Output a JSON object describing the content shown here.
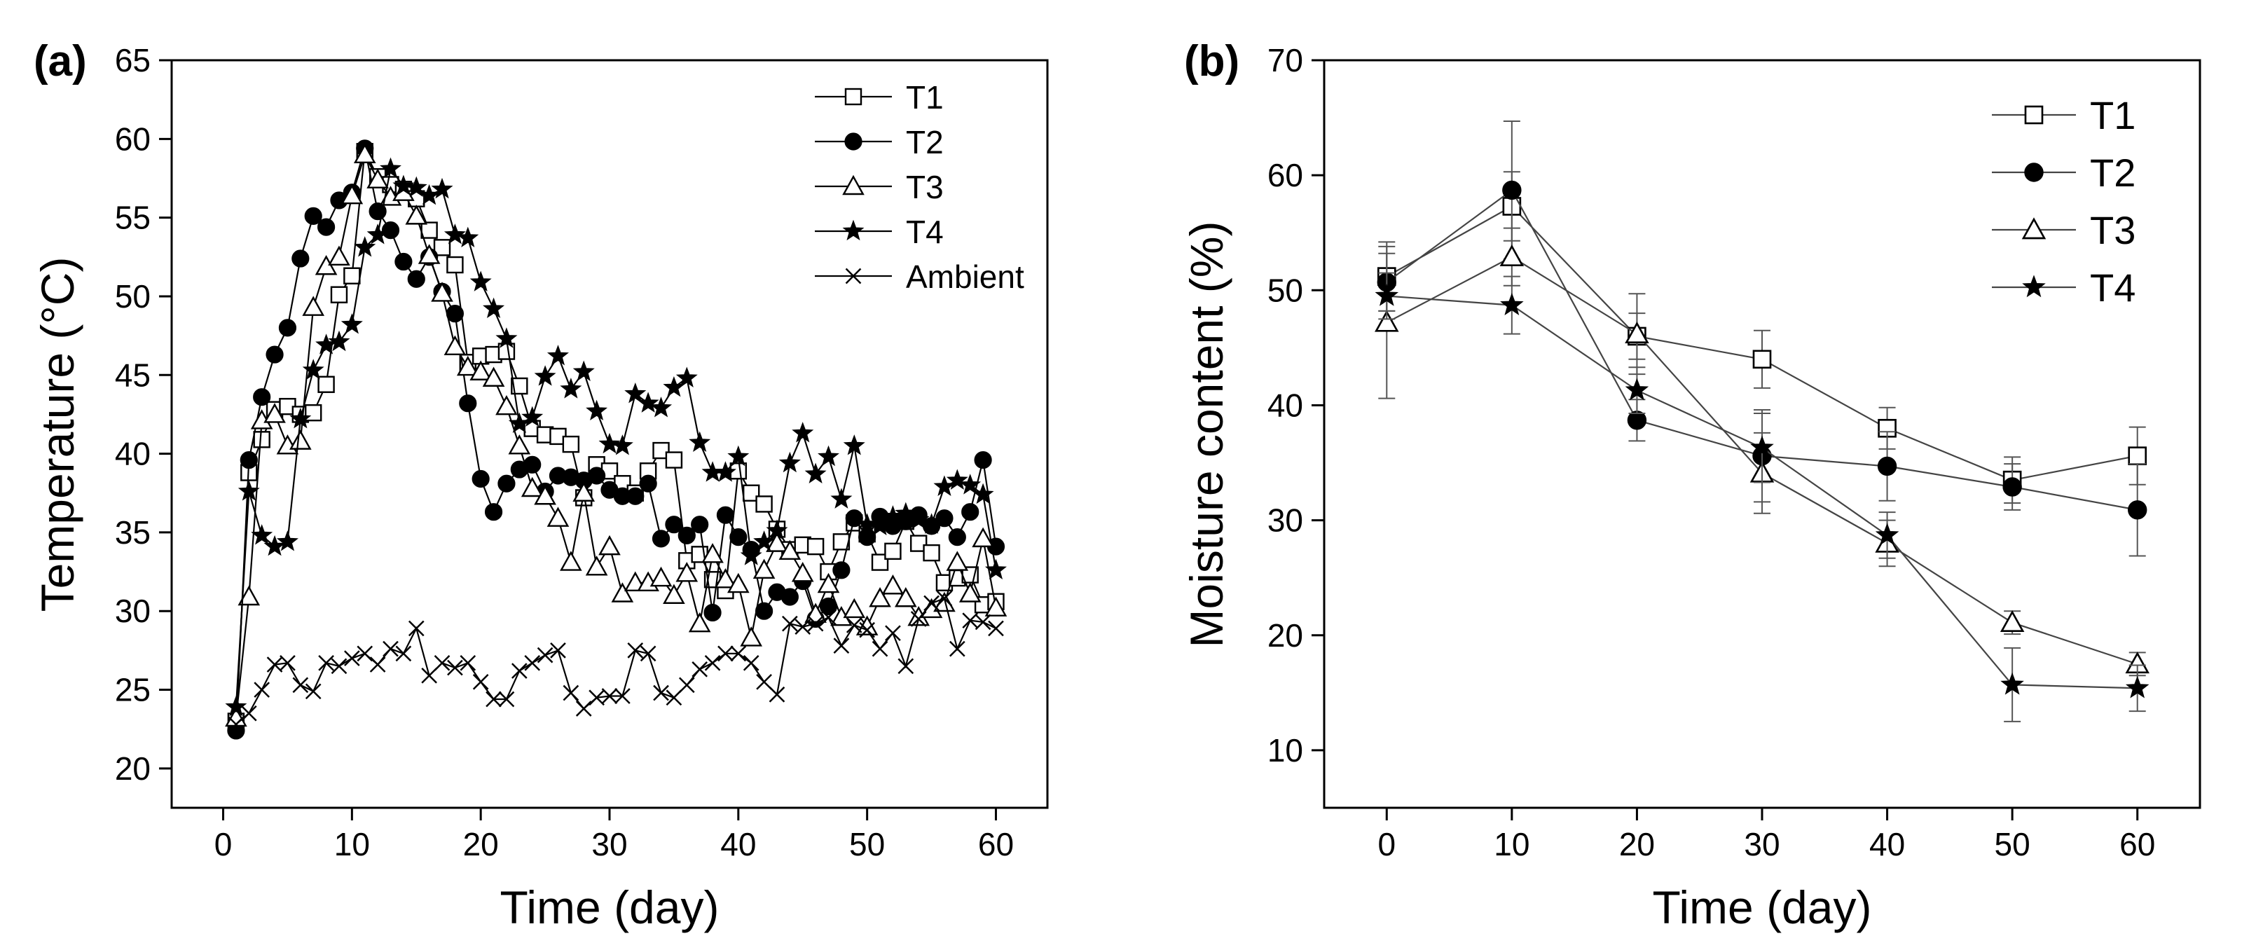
{
  "chart_data": [
    {
      "panel_label": "(a)",
      "type": "line",
      "xlabel": "Time (day)",
      "ylabel": "Temperature (°C)",
      "xlim": [
        -4,
        64
      ],
      "ylim": [
        17.5,
        65
      ],
      "xticks": [
        0,
        10,
        20,
        30,
        40,
        50,
        60
      ],
      "yticks": [
        20,
        25,
        30,
        35,
        40,
        45,
        50,
        55,
        60,
        65
      ],
      "legend_position": "top-right",
      "series": [
        {
          "name": "T1",
          "marker": "square-open",
          "x": [
            1,
            2,
            3,
            4,
            5,
            6,
            7,
            8,
            9,
            10,
            11,
            12,
            13,
            14,
            15,
            16,
            17,
            18,
            19,
            20,
            21,
            22,
            23,
            24,
            25,
            26,
            27,
            28,
            29,
            30,
            31,
            32,
            33,
            34,
            35,
            36,
            37,
            38,
            39,
            40,
            41,
            42,
            43,
            44,
            45,
            46,
            47,
            48,
            49,
            50,
            51,
            52,
            53,
            54,
            55,
            56,
            57,
            58,
            59,
            60
          ],
          "y": [
            23.0,
            38.8,
            40.9,
            42.8,
            43.0,
            42.5,
            42.6,
            44.4,
            50.1,
            51.3,
            59.2,
            57.6,
            57.1,
            56.8,
            56.2,
            54.2,
            53.1,
            52.0,
            45.8,
            46.2,
            46.3,
            46.5,
            44.3,
            41.6,
            41.2,
            41.1,
            40.6,
            37.2,
            39.3,
            38.9,
            38.1,
            37.5,
            38.9,
            40.2,
            39.6,
            33.2,
            33.6,
            32.0,
            31.3,
            38.9,
            37.5,
            36.8,
            35.2,
            33.9,
            34.2,
            34.1,
            32.5,
            34.4,
            35.6,
            34.9,
            33.1,
            33.8,
            35.7,
            34.3,
            33.7,
            31.8,
            32.1,
            32.3,
            30.4,
            30.6
          ]
        },
        {
          "name": "T2",
          "marker": "circle-filled",
          "x": [
            1,
            2,
            3,
            4,
            5,
            6,
            7,
            8,
            9,
            10,
            11,
            12,
            13,
            14,
            15,
            16,
            17,
            18,
            19,
            20,
            21,
            22,
            23,
            24,
            25,
            26,
            27,
            28,
            29,
            30,
            31,
            32,
            33,
            34,
            35,
            36,
            37,
            38,
            39,
            40,
            41,
            42,
            43,
            44,
            45,
            46,
            47,
            48,
            49,
            50,
            51,
            52,
            53,
            54,
            55,
            56,
            57,
            58,
            59,
            60
          ],
          "y": [
            22.4,
            39.6,
            43.6,
            46.3,
            48.0,
            52.4,
            55.1,
            54.4,
            56.1,
            56.6,
            59.4,
            55.4,
            54.2,
            52.2,
            51.1,
            52.5,
            50.3,
            48.9,
            43.2,
            38.4,
            36.3,
            38.1,
            39.0,
            39.3,
            37.6,
            38.6,
            38.5,
            38.3,
            38.6,
            37.7,
            37.3,
            37.3,
            38.1,
            34.6,
            35.5,
            34.8,
            35.5,
            29.9,
            36.1,
            34.7,
            33.9,
            30.0,
            31.2,
            30.9,
            31.9,
            29.5,
            30.3,
            32.6,
            35.9,
            34.7,
            36.0,
            35.4,
            35.7,
            36.1,
            35.4,
            35.9,
            34.7,
            36.3,
            39.6,
            34.1
          ]
        },
        {
          "name": "T3",
          "marker": "triangle-open",
          "x": [
            1,
            2,
            3,
            4,
            5,
            6,
            7,
            8,
            9,
            10,
            11,
            12,
            13,
            14,
            15,
            16,
            17,
            18,
            19,
            20,
            21,
            22,
            23,
            24,
            25,
            26,
            27,
            28,
            29,
            30,
            31,
            32,
            33,
            34,
            35,
            36,
            37,
            38,
            39,
            40,
            41,
            42,
            43,
            44,
            45,
            46,
            47,
            48,
            49,
            50,
            51,
            52,
            53,
            54,
            55,
            56,
            57,
            58,
            59,
            60
          ],
          "y": [
            23.2,
            30.9,
            42.1,
            42.5,
            40.5,
            40.8,
            49.3,
            51.9,
            52.5,
            56.4,
            59.0,
            57.4,
            56.3,
            56.6,
            55.1,
            52.6,
            50.2,
            46.8,
            45.5,
            45.2,
            44.8,
            43.0,
            40.5,
            37.8,
            37.3,
            35.9,
            33.1,
            37.5,
            32.8,
            34.1,
            31.1,
            31.8,
            31.8,
            32.1,
            31.0,
            32.4,
            29.2,
            33.6,
            32.0,
            31.7,
            28.3,
            32.6,
            34.3,
            33.8,
            32.4,
            29.8,
            31.7,
            29.6,
            30.1,
            29.0,
            30.8,
            31.6,
            30.8,
            29.6,
            30.1,
            30.5,
            33.1,
            31.1,
            34.6,
            30.2
          ]
        },
        {
          "name": "T4",
          "marker": "star-filled",
          "x": [
            1,
            2,
            3,
            4,
            5,
            6,
            7,
            8,
            9,
            10,
            11,
            12,
            13,
            14,
            15,
            16,
            17,
            18,
            19,
            20,
            21,
            22,
            23,
            24,
            25,
            26,
            27,
            28,
            29,
            30,
            31,
            32,
            33,
            34,
            35,
            36,
            37,
            38,
            39,
            40,
            41,
            42,
            43,
            44,
            45,
            46,
            47,
            48,
            49,
            50,
            51,
            52,
            53,
            54,
            55,
            56,
            57,
            58,
            59,
            60
          ],
          "y": [
            23.9,
            37.6,
            34.8,
            34.1,
            34.4,
            42.2,
            45.3,
            46.9,
            47.1,
            48.2,
            53.1,
            53.9,
            58.1,
            57.0,
            56.9,
            56.4,
            56.8,
            53.9,
            53.7,
            50.9,
            49.2,
            47.3,
            41.9,
            42.3,
            44.9,
            46.2,
            44.1,
            45.2,
            42.7,
            40.6,
            40.5,
            43.8,
            43.2,
            42.9,
            44.2,
            44.8,
            40.7,
            38.8,
            38.8,
            39.8,
            33.5,
            34.4,
            35.1,
            39.4,
            41.3,
            38.7,
            39.8,
            37.1,
            40.5,
            35.5,
            35.4,
            36.0,
            36.2,
            35.8,
            35.5,
            37.9,
            38.3,
            38.0,
            37.4,
            32.6
          ]
        },
        {
          "name": "Ambient",
          "marker": "x",
          "x": [
            1,
            2,
            3,
            4,
            5,
            6,
            7,
            8,
            9,
            10,
            11,
            12,
            13,
            14,
            15,
            16,
            17,
            18,
            19,
            20,
            21,
            22,
            23,
            24,
            25,
            26,
            27,
            28,
            29,
            30,
            31,
            32,
            33,
            34,
            35,
            36,
            37,
            38,
            39,
            40,
            41,
            42,
            43,
            44,
            45,
            46,
            47,
            48,
            49,
            50,
            51,
            52,
            53,
            54,
            55,
            56,
            57,
            58,
            59,
            60
          ],
          "y": [
            22.8,
            23.5,
            25.0,
            26.6,
            26.7,
            25.3,
            24.9,
            26.7,
            26.5,
            27.0,
            27.3,
            26.6,
            27.6,
            27.3,
            28.9,
            25.9,
            26.7,
            26.4,
            26.7,
            25.5,
            24.4,
            24.4,
            26.2,
            26.7,
            27.2,
            27.5,
            24.8,
            23.8,
            24.5,
            24.6,
            24.6,
            27.5,
            27.3,
            24.8,
            24.5,
            25.3,
            26.3,
            26.7,
            27.3,
            27.3,
            26.7,
            25.5,
            24.7,
            29.2,
            29.0,
            29.2,
            29.6,
            27.8,
            29.1,
            28.8,
            27.6,
            28.6,
            26.5,
            29.5,
            30.5,
            30.8,
            27.6,
            29.4,
            29.3,
            28.9
          ]
        }
      ]
    },
    {
      "panel_label": "(b)",
      "type": "line",
      "xlabel": "Time (day)",
      "ylabel": "Moisture content (%)",
      "xlim": [
        -5,
        65
      ],
      "ylim": [
        5,
        70
      ],
      "xticks": [
        0,
        10,
        20,
        30,
        40,
        50,
        60
      ],
      "yticks": [
        10,
        20,
        30,
        40,
        50,
        60,
        70
      ],
      "legend_position": "top-right",
      "series": [
        {
          "name": "T1",
          "marker": "square-open",
          "x": [
            0,
            10,
            20,
            30,
            40,
            50,
            60
          ],
          "y": [
            51.2,
            57.3,
            46.0,
            44.0,
            38.0,
            33.5,
            35.6
          ],
          "error": [
            3.0,
            3.0,
            2.0,
            2.5,
            1.8,
            2.0,
            2.5
          ]
        },
        {
          "name": "T2",
          "marker": "circle-filled",
          "x": [
            0,
            10,
            20,
            30,
            40,
            50,
            60
          ],
          "y": [
            50.7,
            58.7,
            38.7,
            35.6,
            34.7,
            32.9,
            30.9
          ],
          "error": [
            2.5,
            6.0,
            1.8,
            4.0,
            3.0,
            2.0,
            4.0
          ]
        },
        {
          "name": "T3",
          "marker": "triangle-open",
          "x": [
            0,
            10,
            20,
            30,
            40,
            50,
            60
          ],
          "y": [
            47.2,
            52.9,
            46.2,
            34.1,
            28.0,
            21.1,
            17.5
          ],
          "error": [
            6.6,
            2.5,
            3.5,
            3.5,
            2.0,
            1.0,
            1.0
          ]
        },
        {
          "name": "T4",
          "marker": "star-filled",
          "x": [
            0,
            10,
            20,
            30,
            40,
            50,
            60
          ],
          "y": [
            49.5,
            48.7,
            41.3,
            36.3,
            28.7,
            15.7,
            15.4
          ],
          "error": [
            2.0,
            2.5,
            2.0,
            3.0,
            2.0,
            3.2,
            2.0
          ]
        }
      ]
    }
  ]
}
